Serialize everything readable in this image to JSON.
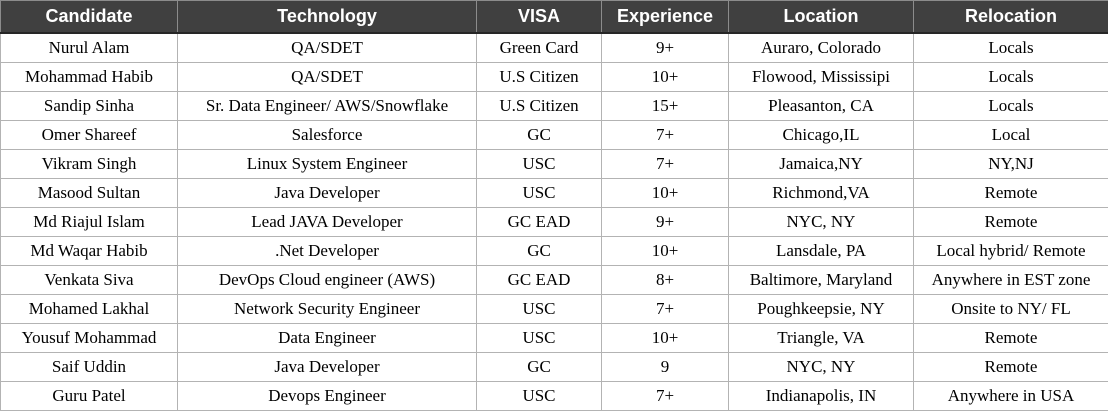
{
  "table": {
    "headers": [
      "Candidate",
      "Technology",
      "VISA",
      "Experience",
      "Location",
      "Relocation"
    ],
    "rows": [
      [
        "Nurul Alam",
        "QA/SDET",
        "Green Card",
        "9+",
        "Auraro, Colorado",
        "Locals"
      ],
      [
        "Mohammad Habib",
        "QA/SDET",
        "U.S Citizen",
        "10+",
        "Flowood, Mississipi",
        "Locals"
      ],
      [
        "Sandip Sinha",
        "Sr. Data Engineer/ AWS/Snowflake",
        "U.S Citizen",
        "15+",
        "Pleasanton, CA",
        "Locals"
      ],
      [
        "Omer Shareef",
        "Salesforce",
        "GC",
        "7+",
        "Chicago,IL",
        "Local"
      ],
      [
        "Vikram Singh",
        "Linux System Engineer",
        "USC",
        "7+",
        "Jamaica,NY",
        "NY,NJ"
      ],
      [
        "Masood Sultan",
        "Java Developer",
        "USC",
        "10+",
        "Richmond,VA",
        "Remote"
      ],
      [
        "Md Riajul Islam",
        "Lead JAVA Developer",
        "GC EAD",
        "9+",
        "NYC, NY",
        "Remote"
      ],
      [
        "Md Waqar Habib",
        ".Net Developer",
        "GC",
        "10+",
        "Lansdale, PA",
        "Local hybrid/ Remote"
      ],
      [
        "Venkata Siva",
        "DevOps Cloud engineer (AWS)",
        "GC EAD",
        "8+",
        "Baltimore, Maryland",
        "Anywhere in EST zone"
      ],
      [
        "Mohamed Lakhal",
        "Network Security Engineer",
        "USC",
        "7+",
        "Poughkeepsie, NY",
        "Onsite to NY/ FL"
      ],
      [
        "Yousuf Mohammad",
        "Data Engineer",
        "USC",
        "10+",
        "Triangle, VA",
        "Remote"
      ],
      [
        "Saif Uddin",
        "Java Developer",
        "GC",
        "9",
        "NYC, NY",
        "Remote"
      ],
      [
        "Guru Patel",
        "Devops Engineer",
        "USC",
        "7+",
        "Indianapolis, IN",
        "Anywhere in USA"
      ]
    ]
  },
  "colors": {
    "header_background": "#404040",
    "header_text": "#ffffff",
    "grid_line": "#b3b3b3"
  }
}
